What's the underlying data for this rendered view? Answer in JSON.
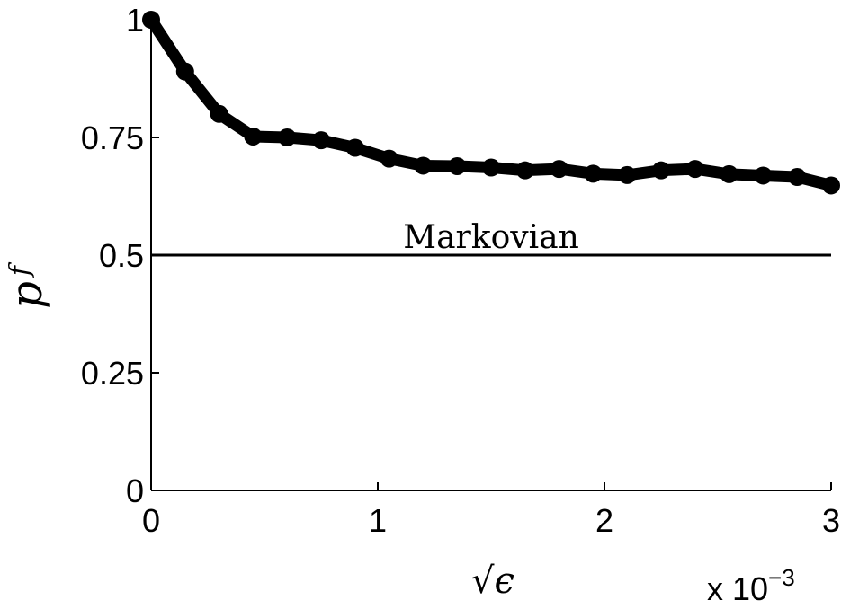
{
  "chart_data": {
    "type": "line",
    "xlabel": "√ϵ",
    "ylabel": "p",
    "ylabel_subscript": "f",
    "x_multiplier_label": "x 10",
    "x_multiplier_exponent": "−3",
    "xlim": [
      0,
      3
    ],
    "ylim": [
      0,
      1
    ],
    "xticks": [
      0,
      1,
      2,
      3
    ],
    "xtick_labels": [
      "0",
      "1",
      "2",
      "3"
    ],
    "yticks": [
      0,
      0.25,
      0.5,
      0.75,
      1
    ],
    "ytick_labels": [
      "0",
      "0.25",
      "0.5",
      "0.75",
      "1"
    ],
    "grid": false,
    "series": [
      {
        "color": "#000000",
        "marker": "circle",
        "x": [
          0,
          0.15,
          0.3,
          0.45,
          0.6,
          0.75,
          0.9,
          1.05,
          1.2,
          1.35,
          1.5,
          1.65,
          1.8,
          1.95,
          2.1,
          2.25,
          2.4,
          2.55,
          2.7,
          2.85,
          3.0
        ],
        "y": [
          1.0,
          0.89,
          0.8,
          0.752,
          0.75,
          0.744,
          0.728,
          0.705,
          0.69,
          0.689,
          0.686,
          0.68,
          0.683,
          0.673,
          0.67,
          0.68,
          0.683,
          0.672,
          0.669,
          0.666,
          0.648
        ]
      }
    ],
    "reference_line": {
      "y": 0.5,
      "label": "Markovian",
      "color": "#000000"
    }
  }
}
